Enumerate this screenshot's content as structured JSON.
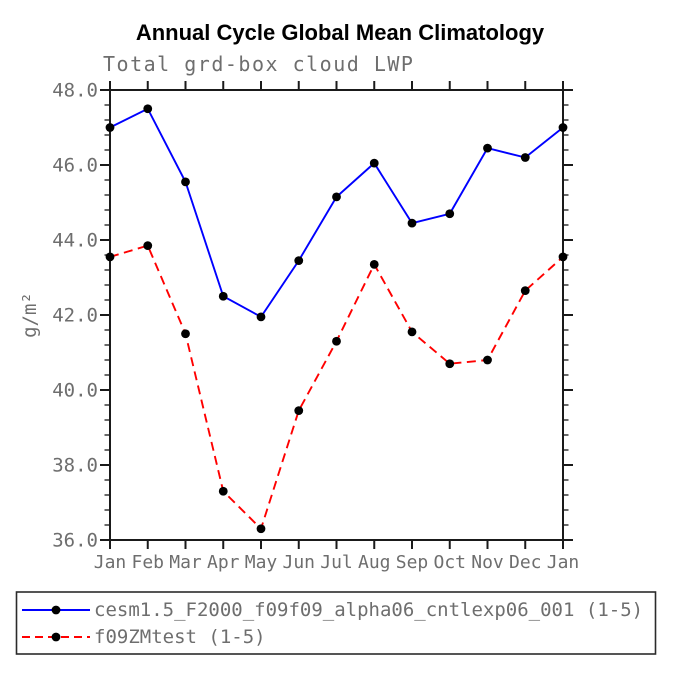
{
  "chart_data": {
    "type": "line",
    "title": "Annual Cycle Global Mean Climatology",
    "subtitle": "Total grd-box cloud LWP",
    "xlabel": "",
    "ylabel": "g/m²",
    "x_categories": [
      "Jan",
      "Feb",
      "Mar",
      "Apr",
      "May",
      "Jun",
      "Jul",
      "Aug",
      "Sep",
      "Oct",
      "Nov",
      "Dec",
      "Jan"
    ],
    "ylim": [
      36.0,
      48.0
    ],
    "ytick_major_interval": 2.0,
    "ytick_minor_interval": 0.4,
    "ytick_labels": [
      "36.0",
      "38.0",
      "40.0",
      "42.0",
      "44.0",
      "46.0",
      "48.0"
    ],
    "grid": false,
    "legend_position": "bottom",
    "series": [
      {
        "name": "cesm1.5_F2000_f09f09_alpha06_cntlexp06_001 (1-5)",
        "color": "#0000ff",
        "line_style": "solid",
        "marker": "filled-circle",
        "marker_color": "#000000",
        "values": [
          47.0,
          47.5,
          45.55,
          42.5,
          41.95,
          43.45,
          45.15,
          46.05,
          44.45,
          44.7,
          46.45,
          46.2,
          47.0
        ]
      },
      {
        "name": "f09ZMtest (1-5)",
        "color": "#ff0000",
        "line_style": "dashed",
        "marker": "filled-circle",
        "marker_color": "#000000",
        "values": [
          43.55,
          43.85,
          41.5,
          37.3,
          36.3,
          39.45,
          41.3,
          43.35,
          41.55,
          40.7,
          40.8,
          42.65,
          43.55
        ]
      }
    ],
    "colors": {
      "axis": "#1a1a1a",
      "text_gray": "#6e6e6e",
      "title": "#000000"
    }
  }
}
